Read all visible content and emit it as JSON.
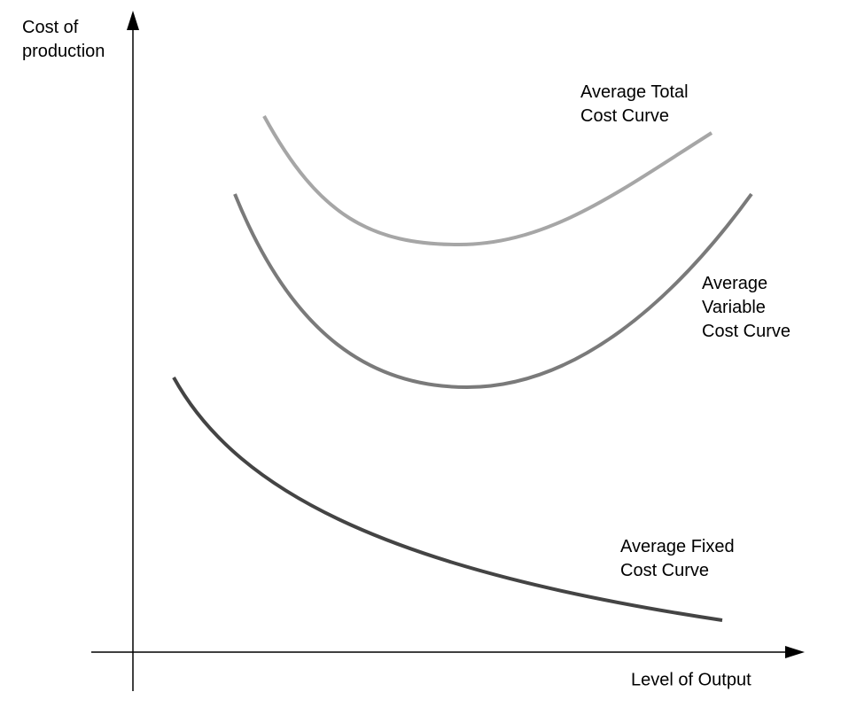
{
  "y_axis_label": [
    "Cost of",
    "production"
  ],
  "x_axis_label": "Level of Output",
  "curves": [
    {
      "label": [
        "Average Total",
        "Cost Curve"
      ]
    },
    {
      "label": [
        "Average",
        "Variable",
        "Cost Curve"
      ]
    },
    {
      "label": [
        "Average Fixed",
        "Cost Curve"
      ]
    }
  ]
}
